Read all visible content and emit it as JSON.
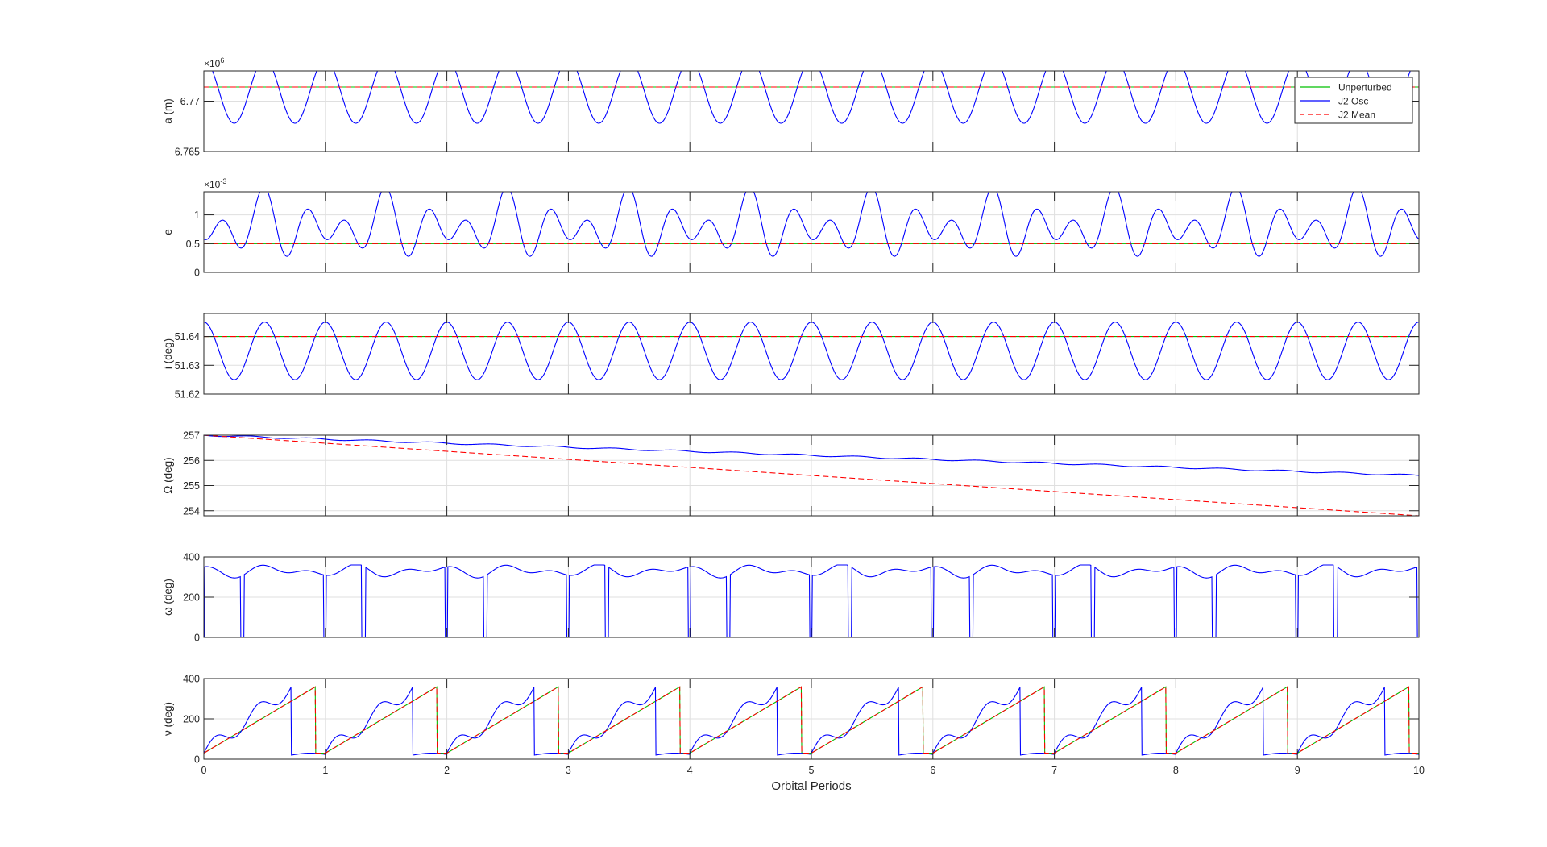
{
  "figure": {
    "xlabel": "Orbital Periods",
    "legend": {
      "placement": "top-right",
      "entries": [
        {
          "label": "Unperturbed",
          "color": "#00c000",
          "style": "solid"
        },
        {
          "label": "J2 Osc",
          "color": "#0000ff",
          "style": "solid"
        },
        {
          "label": "J2 Mean",
          "color": "#ff0000",
          "style": "dashed"
        }
      ]
    },
    "colors": {
      "unperturbed": "#00c000",
      "osc": "#0000ff",
      "mean": "#ff0000",
      "grid": "#dfdfdf",
      "axis": "#262626"
    }
  },
  "chart_data": [
    {
      "type": "line",
      "ylabel": "a (m)",
      "exponent_base": "×10",
      "exponent_power": "6",
      "ylim": [
        6765000,
        6773000
      ],
      "yticks": [
        6765000,
        6770000
      ],
      "ytick_labels": [
        "6.765",
        "6.77"
      ],
      "xlim": [
        0,
        10
      ],
      "xticks": [
        0,
        1,
        2,
        3,
        4,
        5,
        6,
        7,
        8,
        9,
        10
      ],
      "xtick_labels": [
        "0",
        "1",
        "2",
        "3",
        "4",
        "5",
        "6",
        "7",
        "8",
        "9",
        "10"
      ],
      "grid": true,
      "show_xtick_labels": false,
      "series": [
        {
          "name": "Unperturbed",
          "kind": "constant",
          "value": 6771400
        },
        {
          "name": "J2 Osc",
          "kind": "sinusoid",
          "mean": 6771000,
          "amplitude": 3200,
          "cycles_per_period": 2,
          "phase_deg": 180
        },
        {
          "name": "J2 Mean",
          "kind": "constant",
          "value": 6771400
        }
      ]
    },
    {
      "type": "line",
      "ylabel": "e",
      "exponent_base": "×10",
      "exponent_power": "-3",
      "ylim": [
        0,
        0.0014
      ],
      "yticks": [
        0,
        0.0005,
        0.001
      ],
      "ytick_labels": [
        "0",
        "0.5",
        "1"
      ],
      "xlim": [
        0,
        10
      ],
      "xticks": [
        0,
        1,
        2,
        3,
        4,
        5,
        6,
        7,
        8,
        9,
        10
      ],
      "xtick_labels": [
        "0",
        "1",
        "2",
        "3",
        "4",
        "5",
        "6",
        "7",
        "8",
        "9",
        "10"
      ],
      "grid": true,
      "show_xtick_labels": false,
      "series": [
        {
          "name": "Unperturbed",
          "kind": "constant",
          "value": 0.0005
        },
        {
          "name": "J2 Osc",
          "kind": "eccentricity",
          "mean": 0.0005
        },
        {
          "name": "J2 Mean",
          "kind": "constant",
          "value": 0.0005
        }
      ]
    },
    {
      "type": "line",
      "ylabel": "i (deg)",
      "ylim": [
        51.62,
        51.648
      ],
      "yticks": [
        51.62,
        51.63,
        51.64
      ],
      "ytick_labels": [
        "51.62",
        "51.63",
        "51.64"
      ],
      "xlim": [
        0,
        10
      ],
      "xticks": [
        0,
        1,
        2,
        3,
        4,
        5,
        6,
        7,
        8,
        9,
        10
      ],
      "xtick_labels": [
        "0",
        "1",
        "2",
        "3",
        "4",
        "5",
        "6",
        "7",
        "8",
        "9",
        "10"
      ],
      "grid": true,
      "show_xtick_labels": false,
      "series": [
        {
          "name": "Unperturbed",
          "kind": "constant",
          "value": 51.64
        },
        {
          "name": "J2 Osc",
          "kind": "sinusoid",
          "mean": 51.635,
          "amplitude": 0.01,
          "cycles_per_period": 2,
          "phase_deg": 180
        },
        {
          "name": "J2 Mean",
          "kind": "constant",
          "value": 51.64
        }
      ]
    },
    {
      "type": "line",
      "ylabel": "Ω (deg)",
      "ylim": [
        253.8,
        257
      ],
      "yticks": [
        254,
        255,
        256,
        257
      ],
      "ytick_labels": [
        "254",
        "255",
        "256",
        "257"
      ],
      "xlim": [
        0,
        10
      ],
      "xticks": [
        0,
        1,
        2,
        3,
        4,
        5,
        6,
        7,
        8,
        9,
        10
      ],
      "xtick_labels": [
        "0",
        "1",
        "2",
        "3",
        "4",
        "5",
        "6",
        "7",
        "8",
        "9",
        "10"
      ],
      "grid": true,
      "show_xtick_labels": false,
      "series": [
        {
          "name": "Unperturbed",
          "kind": "constant",
          "value": 257
        },
        {
          "name": "J2 Osc",
          "kind": "ramp_wobble",
          "start": 257,
          "end": 255.4,
          "wobble": 0.03
        },
        {
          "name": "J2 Mean",
          "kind": "ramp",
          "start": 257,
          "end": 253.8
        }
      ]
    },
    {
      "type": "line",
      "ylabel": "ω (deg)",
      "ylim": [
        0,
        400
      ],
      "yticks": [
        0,
        200,
        400
      ],
      "ytick_labels": [
        "0",
        "200",
        "400"
      ],
      "xlim": [
        0,
        10
      ],
      "xticks": [
        0,
        1,
        2,
        3,
        4,
        5,
        6,
        7,
        8,
        9,
        10
      ],
      "xtick_labels": [
        "0",
        "1",
        "2",
        "3",
        "4",
        "5",
        "6",
        "7",
        "8",
        "9",
        "10"
      ],
      "grid": true,
      "show_xtick_labels": false,
      "series": [
        {
          "name": "Unperturbed",
          "kind": "constant",
          "value": 0
        },
        {
          "name": "J2 Osc",
          "kind": "argperigee"
        },
        {
          "name": "J2 Mean",
          "kind": "constant",
          "value": 0
        }
      ]
    },
    {
      "type": "line",
      "ylabel": "ν (deg)",
      "ylim": [
        0,
        400
      ],
      "yticks": [
        0,
        200,
        400
      ],
      "ytick_labels": [
        "0",
        "200",
        "400"
      ],
      "xlim": [
        0,
        10
      ],
      "xticks": [
        0,
        1,
        2,
        3,
        4,
        5,
        6,
        7,
        8,
        9,
        10
      ],
      "xtick_labels": [
        "0",
        "1",
        "2",
        "3",
        "4",
        "5",
        "6",
        "7",
        "8",
        "9",
        "10"
      ],
      "grid": true,
      "show_xtick_labels": true,
      "series": [
        {
          "name": "Unperturbed",
          "kind": "sawtooth",
          "start": 30,
          "end": 360,
          "reset_at": 0.92
        },
        {
          "name": "J2 Osc",
          "kind": "trueanomaly"
        },
        {
          "name": "J2 Mean",
          "kind": "sawtooth",
          "start": 30,
          "end": 360,
          "reset_at": 0.92
        }
      ]
    }
  ]
}
